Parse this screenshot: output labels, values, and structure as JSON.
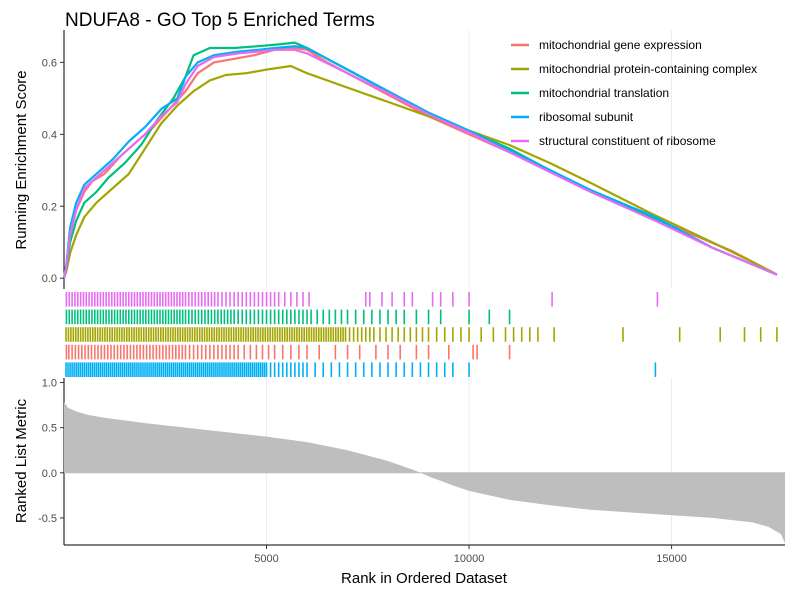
{
  "chart_data": {
    "type": "line",
    "title": "NDUFA8 - GO Top 5 Enriched Terms",
    "xlabel": "Rank in Ordered Dataset",
    "ylabel_top": "Running Enrichment Score",
    "ylabel_bottom": "Ranked List Metric",
    "xlim": [
      0,
      17800
    ],
    "x_ticks": [
      5000,
      10000,
      15000
    ],
    "x_tick_labels": [
      "5000",
      "10000",
      "15000"
    ],
    "top_ylim": [
      -0.03,
      0.69
    ],
    "top_y_ticks": [
      0.0,
      0.2,
      0.4,
      0.6
    ],
    "top_y_tick_labels": [
      "0.0",
      "0.2",
      "0.4",
      "0.6"
    ],
    "bottom_ylim": [
      -0.8,
      1.05
    ],
    "bottom_y_ticks": [
      1.0,
      0.5,
      0.0,
      -0.5
    ],
    "bottom_y_tick_labels": [
      "1.0",
      "0.5",
      "0.0",
      "-0.5"
    ],
    "grid": true,
    "legend_position": "top-right",
    "series": [
      {
        "name": "mitochondrial gene expression",
        "color": "#F8766D",
        "points": [
          [
            0,
            0
          ],
          [
            60,
            0.03
          ],
          [
            150,
            0.12
          ],
          [
            300,
            0.19
          ],
          [
            500,
            0.24
          ],
          [
            700,
            0.27
          ],
          [
            1000,
            0.29
          ],
          [
            1400,
            0.34
          ],
          [
            1800,
            0.38
          ],
          [
            2200,
            0.42
          ],
          [
            2600,
            0.47
          ],
          [
            3000,
            0.52
          ],
          [
            3300,
            0.57
          ],
          [
            3700,
            0.6
          ],
          [
            4200,
            0.61
          ],
          [
            4700,
            0.62
          ],
          [
            5200,
            0.635
          ],
          [
            5700,
            0.64
          ],
          [
            6000,
            0.635
          ],
          [
            6500,
            0.6
          ],
          [
            7500,
            0.54
          ],
          [
            9000,
            0.45
          ],
          [
            11000,
            0.35
          ],
          [
            13000,
            0.245
          ],
          [
            14600,
            0.165
          ],
          [
            16500,
            0.075
          ],
          [
            17600,
            0.01
          ]
        ],
        "hits": [
          60,
          120,
          200,
          280,
          360,
          440,
          520,
          600,
          680,
          760,
          840,
          920,
          1000,
          1080,
          1160,
          1240,
          1320,
          1400,
          1480,
          1560,
          1640,
          1720,
          1800,
          1880,
          1960,
          2040,
          2120,
          2200,
          2280,
          2360,
          2440,
          2520,
          2600,
          2680,
          2760,
          2840,
          2920,
          3000,
          3100,
          3200,
          3300,
          3400,
          3500,
          3600,
          3700,
          3800,
          3900,
          4000,
          4100,
          4200,
          4300,
          4450,
          4600,
          4750,
          4900,
          5050,
          5200,
          5400,
          5600,
          5800,
          6000,
          6300,
          6700,
          7000,
          7300,
          7700,
          8000,
          8300,
          8700,
          9000,
          9500,
          10100,
          10200,
          11000
        ]
      },
      {
        "name": "mitochondrial protein-containing complex",
        "color": "#A3A500",
        "points": [
          [
            0,
            0
          ],
          [
            60,
            0.02
          ],
          [
            150,
            0.07
          ],
          [
            300,
            0.12
          ],
          [
            500,
            0.17
          ],
          [
            800,
            0.21
          ],
          [
            1200,
            0.25
          ],
          [
            1600,
            0.29
          ],
          [
            2000,
            0.36
          ],
          [
            2400,
            0.43
          ],
          [
            2800,
            0.48
          ],
          [
            3200,
            0.52
          ],
          [
            3600,
            0.55
          ],
          [
            4000,
            0.565
          ],
          [
            4500,
            0.57
          ],
          [
            5000,
            0.58
          ],
          [
            5600,
            0.59
          ],
          [
            6000,
            0.57
          ],
          [
            7000,
            0.53
          ],
          [
            8000,
            0.49
          ],
          [
            9000,
            0.45
          ],
          [
            10000,
            0.41
          ],
          [
            11000,
            0.37
          ],
          [
            12000,
            0.32
          ],
          [
            13000,
            0.265
          ],
          [
            14500,
            0.18
          ],
          [
            16000,
            0.1
          ],
          [
            17000,
            0.045
          ],
          [
            17600,
            0.01
          ]
        ],
        "hits": [
          50,
          110,
          170,
          230,
          290,
          350,
          410,
          470,
          530,
          590,
          650,
          710,
          770,
          830,
          890,
          950,
          1010,
          1070,
          1130,
          1190,
          1250,
          1310,
          1370,
          1430,
          1490,
          1550,
          1610,
          1670,
          1730,
          1790,
          1850,
          1910,
          1970,
          2030,
          2090,
          2150,
          2210,
          2270,
          2330,
          2390,
          2450,
          2510,
          2570,
          2630,
          2690,
          2750,
          2810,
          2870,
          2930,
          2990,
          3050,
          3110,
          3170,
          3230,
          3290,
          3350,
          3410,
          3470,
          3530,
          3590,
          3650,
          3710,
          3770,
          3830,
          3890,
          3950,
          4010,
          4070,
          4130,
          4190,
          4250,
          4310,
          4370,
          4430,
          4490,
          4550,
          4610,
          4670,
          4730,
          4790,
          4850,
          4910,
          4970,
          5030,
          5090,
          5150,
          5210,
          5270,
          5330,
          5390,
          5450,
          5510,
          5570,
          5630,
          5690,
          5750,
          5810,
          5870,
          5930,
          5990,
          6050,
          6110,
          6170,
          6230,
          6290,
          6350,
          6410,
          6470,
          6530,
          6590,
          6650,
          6710,
          6770,
          6830,
          6890,
          6950,
          7050,
          7150,
          7250,
          7350,
          7450,
          7550,
          7650,
          7800,
          7950,
          8100,
          8250,
          8400,
          8550,
          8700,
          8850,
          9000,
          9200,
          9400,
          9600,
          9800,
          10000,
          10300,
          10600,
          10900,
          11100,
          11300,
          11500,
          11700,
          12100,
          13800,
          15200,
          16200,
          16800,
          17200,
          17600
        ]
      },
      {
        "name": "mitochondrial translation",
        "color": "#00BF7D",
        "points": [
          [
            0,
            0
          ],
          [
            60,
            0.03
          ],
          [
            150,
            0.1
          ],
          [
            300,
            0.16
          ],
          [
            500,
            0.21
          ],
          [
            800,
            0.24
          ],
          [
            1100,
            0.28
          ],
          [
            1500,
            0.32
          ],
          [
            1900,
            0.37
          ],
          [
            2300,
            0.44
          ],
          [
            2700,
            0.5
          ],
          [
            3000,
            0.56
          ],
          [
            3200,
            0.62
          ],
          [
            3600,
            0.64
          ],
          [
            4200,
            0.64
          ],
          [
            4800,
            0.645
          ],
          [
            5300,
            0.65
          ],
          [
            5700,
            0.655
          ],
          [
            6000,
            0.64
          ],
          [
            7000,
            0.58
          ],
          [
            8000,
            0.52
          ],
          [
            9000,
            0.46
          ],
          [
            10000,
            0.41
          ],
          [
            11000,
            0.36
          ],
          [
            12000,
            0.3
          ],
          [
            13000,
            0.245
          ],
          [
            14600,
            0.165
          ],
          [
            16000,
            0.085
          ],
          [
            17600,
            0.01
          ]
        ],
        "hits": [
          60,
          130,
          200,
          270,
          340,
          410,
          480,
          550,
          620,
          690,
          760,
          830,
          900,
          970,
          1040,
          1110,
          1180,
          1250,
          1320,
          1390,
          1460,
          1530,
          1600,
          1670,
          1740,
          1810,
          1880,
          1950,
          2020,
          2090,
          2160,
          2230,
          2300,
          2370,
          2440,
          2510,
          2580,
          2650,
          2720,
          2790,
          2860,
          2930,
          3000,
          3080,
          3160,
          3240,
          3320,
          3400,
          3480,
          3560,
          3640,
          3720,
          3800,
          3880,
          3960,
          4040,
          4120,
          4200,
          4300,
          4400,
          4500,
          4600,
          4700,
          4800,
          4900,
          5000,
          5100,
          5200,
          5300,
          5400,
          5500,
          5600,
          5700,
          5800,
          5900,
          6000,
          6100,
          6250,
          6400,
          6550,
          6700,
          6850,
          7000,
          7200,
          7400,
          7600,
          7800,
          8000,
          8200,
          8400,
          8700,
          9000,
          9300,
          10000,
          10500,
          11000
        ]
      },
      {
        "name": "ribosomal subunit",
        "color": "#00B0F6",
        "points": [
          [
            0,
            0
          ],
          [
            60,
            0.04
          ],
          [
            150,
            0.14
          ],
          [
            300,
            0.21
          ],
          [
            500,
            0.26
          ],
          [
            800,
            0.29
          ],
          [
            1200,
            0.33
          ],
          [
            1600,
            0.38
          ],
          [
            2000,
            0.42
          ],
          [
            2400,
            0.47
          ],
          [
            2800,
            0.5
          ],
          [
            3000,
            0.56
          ],
          [
            3300,
            0.6
          ],
          [
            3700,
            0.62
          ],
          [
            4300,
            0.63
          ],
          [
            4800,
            0.635
          ],
          [
            5200,
            0.64
          ],
          [
            5700,
            0.645
          ],
          [
            6000,
            0.64
          ],
          [
            7000,
            0.58
          ],
          [
            8000,
            0.52
          ],
          [
            9000,
            0.46
          ],
          [
            10000,
            0.41
          ],
          [
            11000,
            0.355
          ],
          [
            12000,
            0.3
          ],
          [
            13000,
            0.245
          ],
          [
            14600,
            0.17
          ],
          [
            16000,
            0.085
          ],
          [
            17600,
            0.01
          ]
        ],
        "hits": [
          50,
          100,
          150,
          200,
          250,
          300,
          350,
          400,
          450,
          500,
          550,
          600,
          650,
          700,
          750,
          800,
          850,
          900,
          950,
          1000,
          1050,
          1100,
          1150,
          1200,
          1250,
          1300,
          1350,
          1400,
          1450,
          1500,
          1550,
          1600,
          1650,
          1700,
          1750,
          1800,
          1850,
          1900,
          1950,
          2000,
          2050,
          2100,
          2150,
          2200,
          2250,
          2300,
          2350,
          2400,
          2450,
          2500,
          2550,
          2600,
          2650,
          2700,
          2750,
          2800,
          2850,
          2900,
          2950,
          3000,
          3050,
          3100,
          3150,
          3200,
          3250,
          3300,
          3350,
          3400,
          3450,
          3500,
          3550,
          3600,
          3650,
          3700,
          3750,
          3800,
          3850,
          3900,
          3950,
          4000,
          4050,
          4100,
          4150,
          4200,
          4250,
          4300,
          4350,
          4400,
          4450,
          4500,
          4550,
          4600,
          4650,
          4700,
          4750,
          4800,
          4850,
          4900,
          4950,
          5000,
          5100,
          5200,
          5300,
          5400,
          5500,
          5600,
          5700,
          5800,
          5900,
          6000,
          6200,
          6400,
          6600,
          6800,
          7000,
          7200,
          7400,
          7600,
          7800,
          8000,
          8200,
          8400,
          8600,
          8800,
          9000,
          9200,
          9400,
          9600,
          10000,
          14600
        ]
      },
      {
        "name": "structural constituent of ribosome",
        "color": "#E76BF3",
        "points": [
          [
            0,
            0
          ],
          [
            60,
            0.035
          ],
          [
            150,
            0.12
          ],
          [
            300,
            0.19
          ],
          [
            500,
            0.25
          ],
          [
            800,
            0.28
          ],
          [
            1200,
            0.32
          ],
          [
            1600,
            0.36
          ],
          [
            2000,
            0.4
          ],
          [
            2400,
            0.45
          ],
          [
            2800,
            0.49
          ],
          [
            3000,
            0.54
          ],
          [
            3300,
            0.59
          ],
          [
            3700,
            0.615
          ],
          [
            4300,
            0.625
          ],
          [
            4800,
            0.63
          ],
          [
            5200,
            0.635
          ],
          [
            5700,
            0.635
          ],
          [
            6000,
            0.625
          ],
          [
            7000,
            0.57
          ],
          [
            8000,
            0.515
          ],
          [
            9000,
            0.455
          ],
          [
            10000,
            0.405
          ],
          [
            11000,
            0.35
          ],
          [
            12000,
            0.295
          ],
          [
            13000,
            0.24
          ],
          [
            14600,
            0.16
          ],
          [
            16000,
            0.085
          ],
          [
            17600,
            0.01
          ]
        ],
        "hits": [
          60,
          130,
          200,
          270,
          340,
          410,
          480,
          550,
          620,
          690,
          760,
          830,
          900,
          970,
          1040,
          1110,
          1180,
          1250,
          1320,
          1390,
          1460,
          1530,
          1600,
          1670,
          1740,
          1810,
          1880,
          1950,
          2020,
          2090,
          2160,
          2230,
          2300,
          2370,
          2440,
          2510,
          2580,
          2650,
          2720,
          2790,
          2860,
          2930,
          3000,
          3080,
          3160,
          3240,
          3320,
          3400,
          3480,
          3560,
          3640,
          3720,
          3800,
          3900,
          4000,
          4100,
          4200,
          4300,
          4400,
          4500,
          4600,
          4700,
          4800,
          4900,
          5000,
          5100,
          5200,
          5300,
          5450,
          5600,
          5750,
          5900,
          6050,
          7450,
          7550,
          7850,
          8100,
          8400,
          8600,
          9100,
          9300,
          9600,
          10000,
          12050,
          14650
        ]
      }
    ],
    "ranked_metric": [
      [
        0,
        0.78
      ],
      [
        100,
        0.72
      ],
      [
        300,
        0.68
      ],
      [
        600,
        0.64
      ],
      [
        1000,
        0.61
      ],
      [
        2000,
        0.55
      ],
      [
        3000,
        0.5
      ],
      [
        4000,
        0.45
      ],
      [
        5000,
        0.4
      ],
      [
        6000,
        0.34
      ],
      [
        7000,
        0.25
      ],
      [
        8000,
        0.13
      ],
      [
        8700,
        0.02
      ],
      [
        9000,
        -0.04
      ],
      [
        9600,
        -0.14
      ],
      [
        10000,
        -0.2
      ],
      [
        11000,
        -0.3
      ],
      [
        12000,
        -0.36
      ],
      [
        13000,
        -0.41
      ],
      [
        14000,
        -0.44
      ],
      [
        15000,
        -0.47
      ],
      [
        16000,
        -0.5
      ],
      [
        17000,
        -0.55
      ],
      [
        17400,
        -0.6
      ],
      [
        17700,
        -0.68
      ],
      [
        17900,
        -0.78
      ]
    ]
  }
}
